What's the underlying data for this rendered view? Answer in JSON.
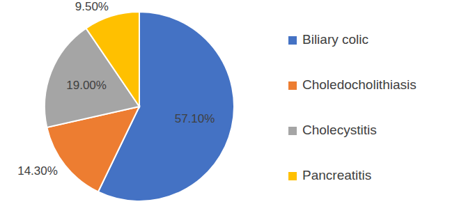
{
  "chart_data": {
    "type": "pie",
    "categories": [
      "Biliary colic",
      "Choledocholithiasis",
      "Cholecystitis",
      "Pancreatitis"
    ],
    "values": [
      57.1,
      14.3,
      19.0,
      9.5
    ],
    "value_labels": [
      "57.10%",
      "14.30%",
      "19.00%",
      "9.50%"
    ],
    "colors": [
      "#4472c4",
      "#ed7d31",
      "#a5a5a5",
      "#ffc000"
    ],
    "data_labels": true,
    "legend": "right"
  }
}
